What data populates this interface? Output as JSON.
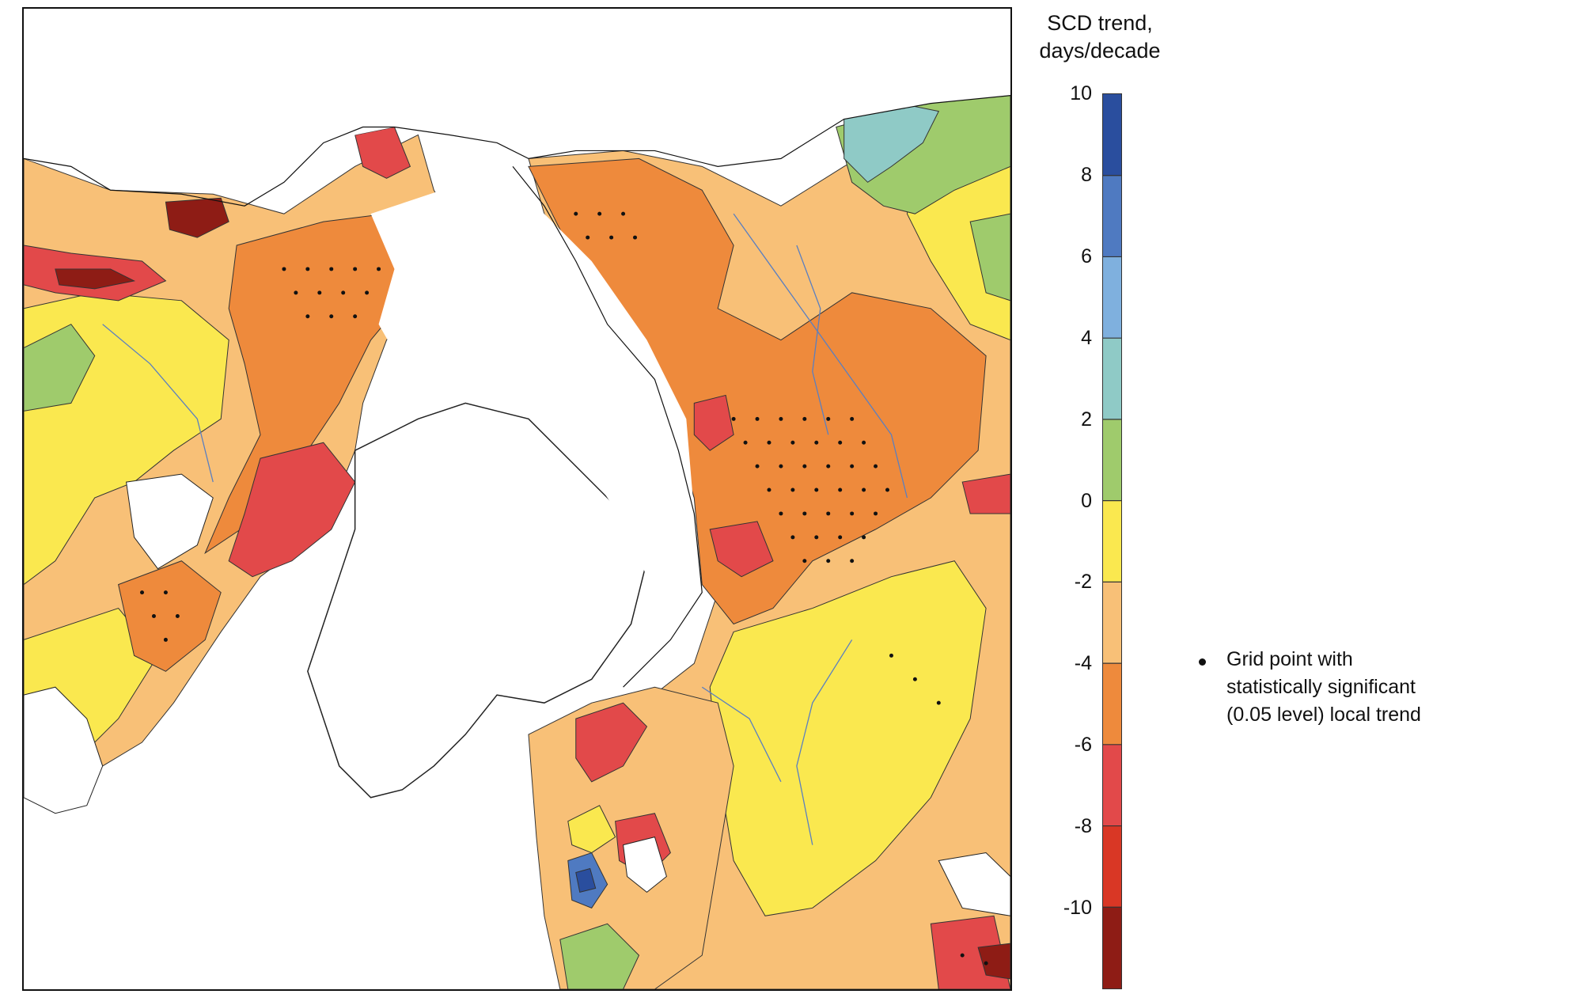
{
  "legend": {
    "title_line1": "SCD trend,",
    "title_line2": "days/decade",
    "ticks": [
      "10",
      "8",
      "6",
      "4",
      "2",
      "0",
      "-2",
      "-4",
      "-6",
      "-8",
      "-10"
    ],
    "colors": [
      "#2a4e9e",
      "#4f7ac1",
      "#7fb0de",
      "#8fcac6",
      "#9fcb6c",
      "#fae84f",
      "#f8c077",
      "#ee8a3c",
      "#e2494a",
      "#d93725",
      "#8e1c15"
    ],
    "significance_note": "Grid point with\nstatistically significant\n(0.05 level) local trend"
  },
  "map": {
    "description_colors": {
      "ocean": "#ffffff",
      "coast": "#111111",
      "rivers": "#5a7fc0"
    }
  }
}
